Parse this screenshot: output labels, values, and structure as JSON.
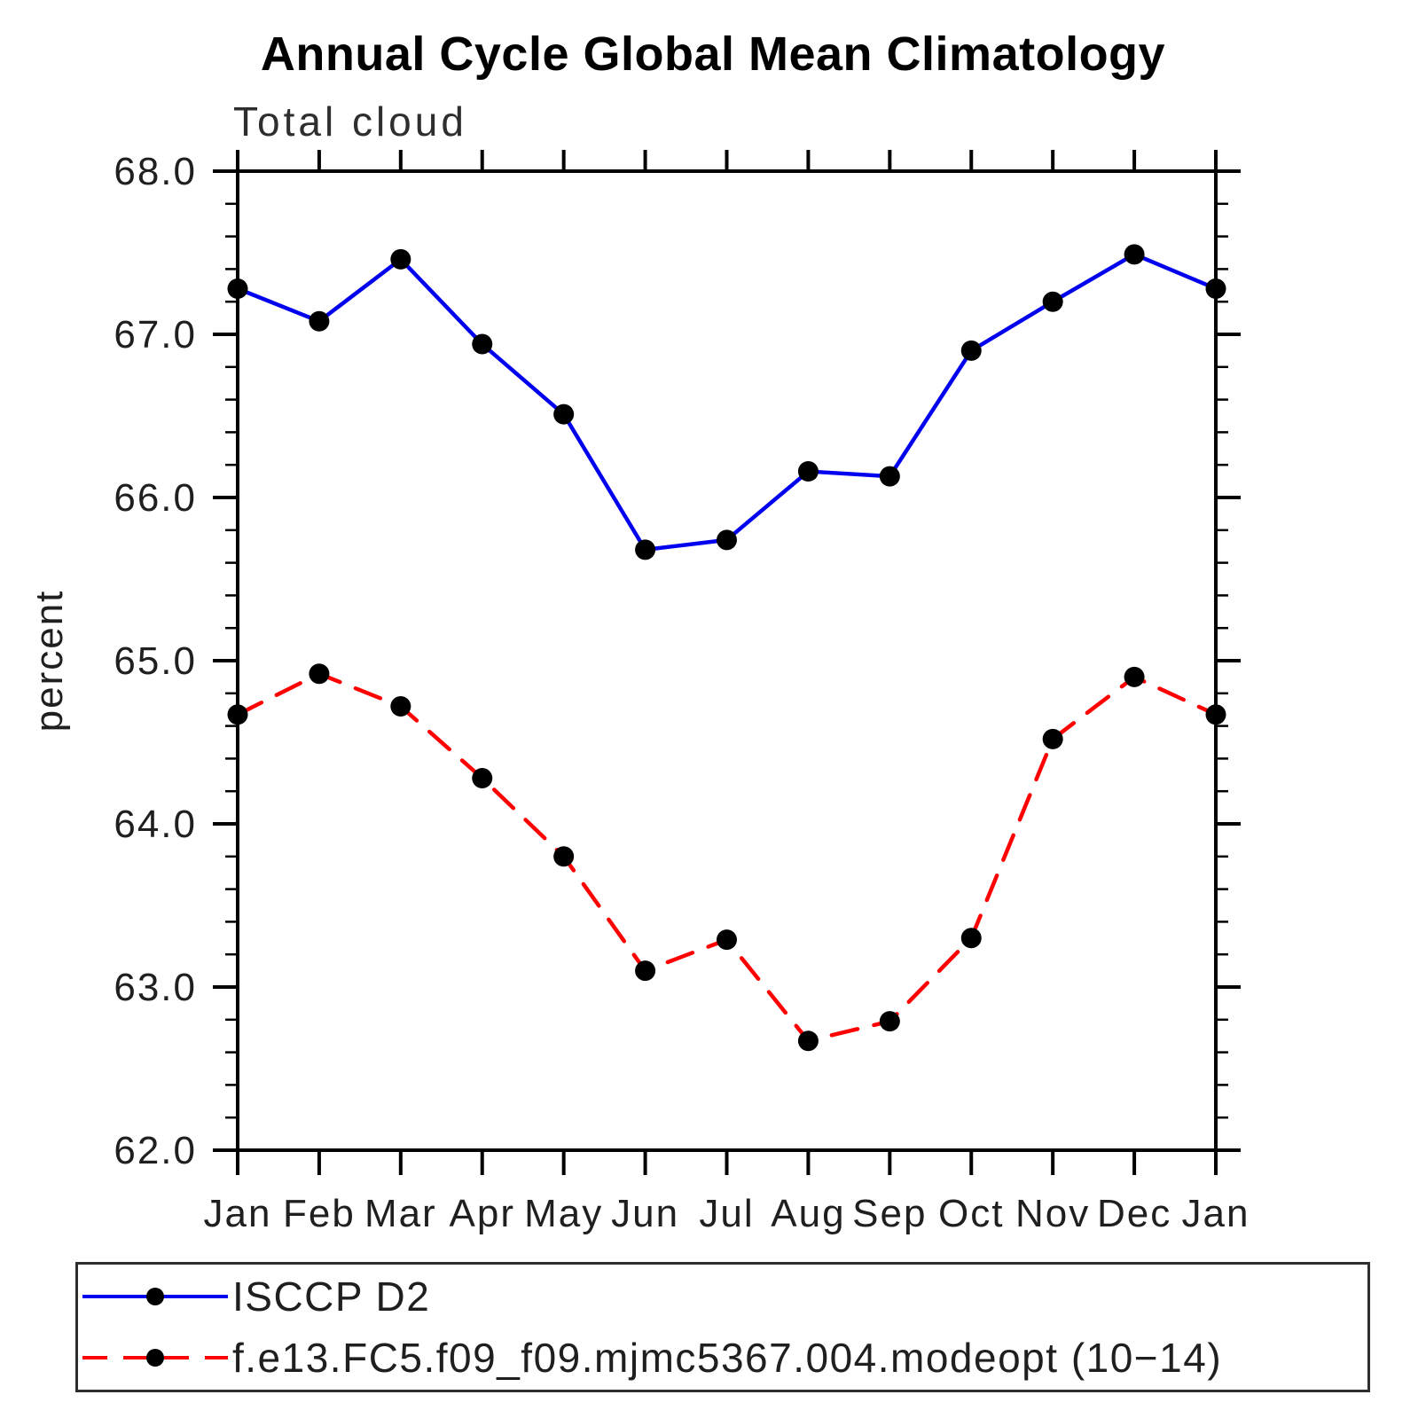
{
  "chart_data": {
    "type": "line",
    "title": "Annual Cycle Global Mean Climatology",
    "subtitle": "Total cloud",
    "ylabel": "percent",
    "xlabel": "",
    "x_tick_labels": [
      "Jan",
      "Feb",
      "Mar",
      "Apr",
      "May",
      "Jun",
      "Jul",
      "Aug",
      "Sep",
      "Oct",
      "Nov",
      "Dec",
      "Jan"
    ],
    "ylim": [
      62.0,
      68.0
    ],
    "y_major_step": 1.0,
    "y_minor_step": 0.2,
    "y_tick_labels": [
      "62.0",
      "63.0",
      "64.0",
      "65.0",
      "66.0",
      "67.0",
      "68.0"
    ],
    "grid": false,
    "legend_position": "bottom",
    "frame_color": "#000000",
    "text_color": "#1f1f1f",
    "series": [
      {
        "name": "ISCCP D2",
        "color": "#0000ee",
        "line_style": "solid",
        "marker": "circle",
        "marker_color": "#000000",
        "values": [
          67.28,
          67.08,
          67.46,
          66.94,
          66.51,
          65.68,
          65.74,
          66.16,
          66.13,
          66.9,
          67.2,
          67.49,
          67.28
        ]
      },
      {
        "name": "f.e13.FC5.f09_f09.mjmc5367.004.modeopt (10−14)",
        "color": "#ff0000",
        "line_style": "dashed",
        "marker": "circle",
        "marker_color": "#000000",
        "values": [
          64.67,
          64.92,
          64.72,
          64.28,
          63.8,
          63.1,
          63.29,
          62.67,
          62.79,
          63.3,
          64.52,
          64.9,
          64.67
        ]
      }
    ]
  }
}
